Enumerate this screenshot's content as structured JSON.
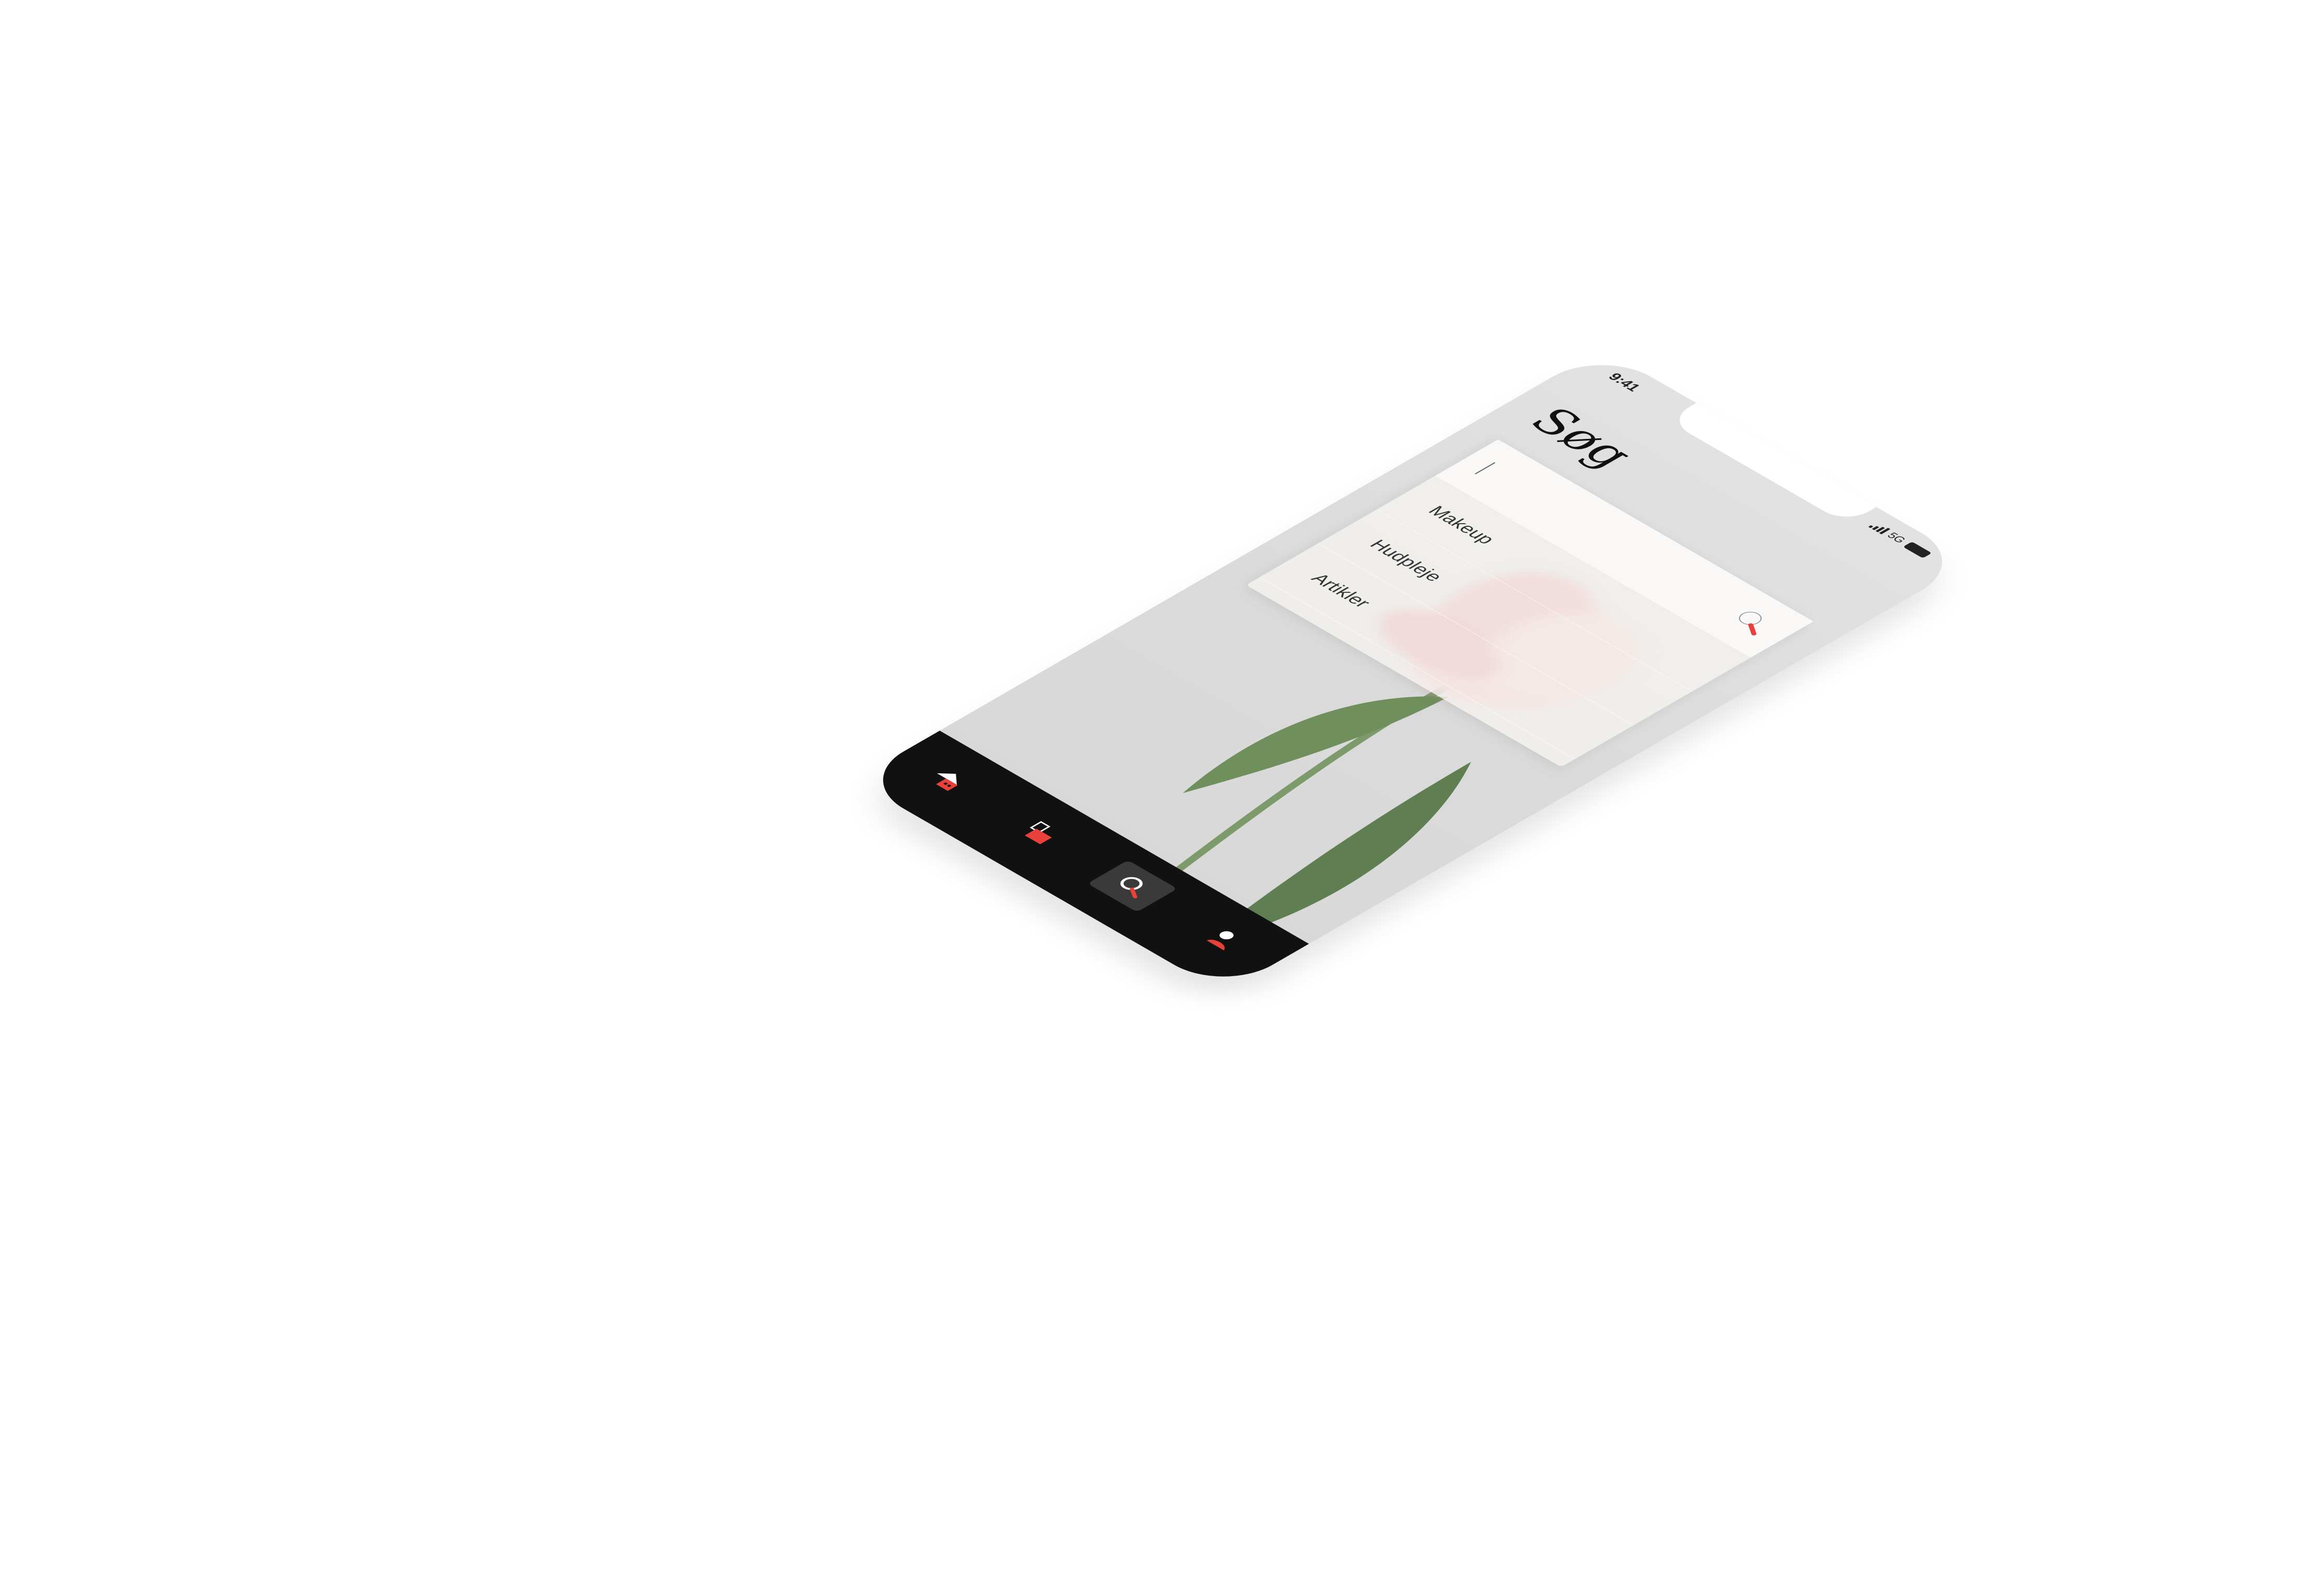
{
  "status_bar": {
    "time": "9:41",
    "network": "5G"
  },
  "page": {
    "title": "Søg"
  },
  "search": {
    "input_value": "",
    "button_icon": "search-icon"
  },
  "categories": [
    {
      "label": "Makeup"
    },
    {
      "label": "Hudpleje"
    },
    {
      "label": "Artikler"
    }
  ],
  "tabbar": {
    "items": [
      {
        "icon": "home-icon",
        "active": false
      },
      {
        "icon": "shopping-bag-icon",
        "active": false
      },
      {
        "icon": "search-icon",
        "active": true
      },
      {
        "icon": "profile-icon",
        "active": false
      }
    ]
  },
  "colors": {
    "accent": "#e8403a",
    "tabbar_bg": "#111111",
    "screen_bg": "#dcdcdc",
    "flower_petal": "#e9a6ab",
    "flower_stem": "#6f8f5c"
  }
}
